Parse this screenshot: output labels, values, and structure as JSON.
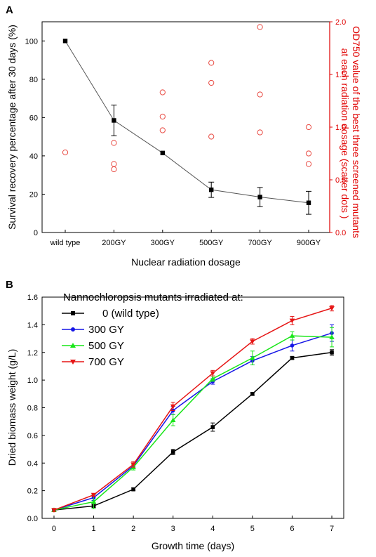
{
  "chart_data": [
    {
      "panel": "A",
      "type": "line",
      "categories": [
        "wild type",
        "200GY",
        "300GY",
        "500GY",
        "700GY",
        "900GY"
      ],
      "xlabel": "Nuclear radiation dosage",
      "ylabel": "Survival recovery percentage after 30 days (%)",
      "ylim": [
        0,
        110
      ],
      "yticks": [
        0,
        20,
        40,
        60,
        80,
        100
      ],
      "y2label": "OD750 value of the best three screened mutants at each radiation dosage (scatter dots )",
      "y2label_lines": [
        "OD750 value of the best three screened mutants",
        "at each radiation dosage (scatter dots )"
      ],
      "y2lim": [
        0,
        2.0
      ],
      "y2ticks": [
        "0.0",
        "0.5",
        "1.0",
        "1.5",
        "2.0"
      ],
      "grid": false,
      "series": [
        {
          "axis": "left",
          "marker": "square",
          "color": "#000000",
          "values": [
            100,
            58.5,
            41.5,
            22.3,
            18.5,
            15.5
          ],
          "errors": [
            0,
            8,
            0,
            4,
            5,
            6
          ]
        }
      ],
      "scatter": {
        "axis": "right",
        "marker": "open-circle",
        "color": "#e8473f",
        "points": [
          [
            0,
            0.76
          ],
          [
            1,
            0.85
          ],
          [
            1,
            0.65
          ],
          [
            1,
            0.6
          ],
          [
            2,
            1.33
          ],
          [
            2,
            1.1
          ],
          [
            2,
            0.97
          ],
          [
            3,
            1.61
          ],
          [
            3,
            1.42
          ],
          [
            3,
            0.91
          ],
          [
            4,
            1.95
          ],
          [
            4,
            1.31
          ],
          [
            4,
            0.95
          ],
          [
            5,
            1.0
          ],
          [
            5,
            0.75
          ],
          [
            5,
            0.65
          ]
        ]
      },
      "colors": {
        "left_axis": "#000000",
        "right_axis": "#e00000",
        "line": "#555555"
      }
    },
    {
      "panel": "B",
      "type": "line",
      "x": [
        0,
        1,
        2,
        3,
        4,
        5,
        6,
        7
      ],
      "xlabel": "Growth time (days)",
      "ylabel": "Dried biomass weight (g/L)",
      "ylim": [
        0,
        1.6
      ],
      "yticks": [
        "0.0",
        "0.2",
        "0.4",
        "0.6",
        "0.8",
        "1.0",
        "1.2",
        "1.4",
        "1.6"
      ],
      "xlim": [
        -0.3,
        7.3
      ],
      "grid": false,
      "legend_title": "Nannochloropsis mutants irradiated at:",
      "legend_position": "top-left",
      "series": [
        {
          "name": "0 (wild type)",
          "color": "#000000",
          "marker": "square",
          "values": [
            0.06,
            0.09,
            0.21,
            0.48,
            0.66,
            0.9,
            1.16,
            1.2
          ],
          "errors": [
            0.01,
            0.01,
            0.01,
            0.02,
            0.03,
            0.01,
            0.01,
            0.02
          ]
        },
        {
          "name": "300 GY",
          "color": "#1515e6",
          "marker": "circle",
          "values": [
            0.06,
            0.15,
            0.38,
            0.78,
            0.99,
            1.14,
            1.25,
            1.34
          ],
          "errors": [
            0.01,
            0.02,
            0.02,
            0.03,
            0.02,
            0.03,
            0.04,
            0.06
          ]
        },
        {
          "name": "500 GY",
          "color": "#19e619",
          "marker": "triangle-up",
          "values": [
            0.06,
            0.12,
            0.37,
            0.71,
            1.01,
            1.16,
            1.32,
            1.31
          ],
          "errors": [
            0.01,
            0.05,
            0.02,
            0.04,
            0.02,
            0.05,
            0.03,
            0.07
          ]
        },
        {
          "name": "700 GY",
          "color": "#e61515",
          "marker": "triangle-down",
          "values": [
            0.06,
            0.17,
            0.39,
            0.81,
            1.05,
            1.28,
            1.43,
            1.52
          ],
          "errors": [
            0.01,
            0.01,
            0.02,
            0.03,
            0.02,
            0.02,
            0.03,
            0.02
          ]
        }
      ]
    }
  ]
}
